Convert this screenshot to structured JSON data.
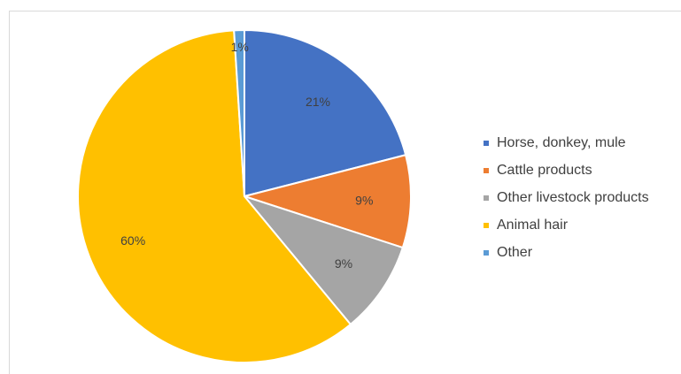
{
  "chart_data": {
    "type": "pie",
    "title": "",
    "start": "12 o'clock, clockwise",
    "slices": [
      {
        "name": "Horse, donkey, mule",
        "value": 21,
        "label": "21%",
        "color": "#4472c4"
      },
      {
        "name": "Cattle products",
        "value": 9,
        "label": "9%",
        "color": "#ed7d31"
      },
      {
        "name": "Other livestock products",
        "value": 9,
        "label": "9%",
        "color": "#a5a5a5"
      },
      {
        "name": "Animal hair",
        "value": 60,
        "label": "60%",
        "color": "#ffc000"
      },
      {
        "name": "Other",
        "value": 1,
        "label": "1%",
        "color": "#5b9bd5"
      }
    ],
    "legend_position": "right"
  }
}
